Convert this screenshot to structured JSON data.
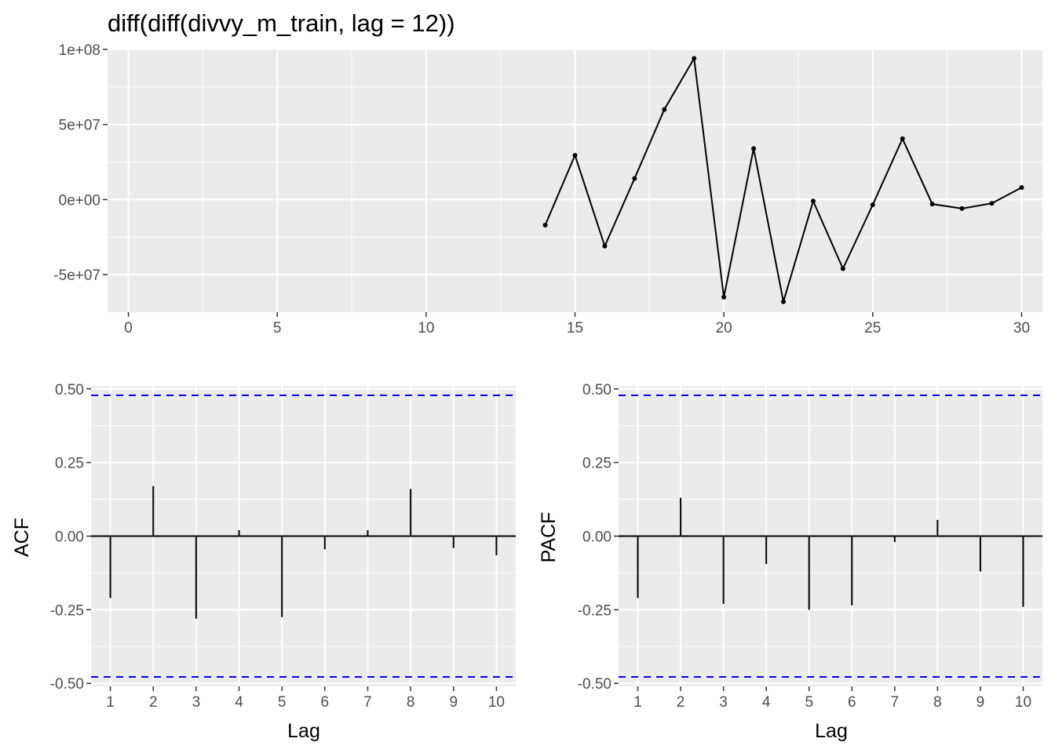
{
  "chart_data": [
    {
      "type": "line",
      "title": "diff(diff(divvy_m_train, lag = 12))",
      "xlabel": "",
      "ylabel": "",
      "xlim": [
        -0.7,
        30.7
      ],
      "ylim": [
        -75000000,
        100000000
      ],
      "x_ticks": [
        0,
        5,
        10,
        15,
        20,
        25,
        30
      ],
      "x_tick_labels": [
        "0",
        "5",
        "10",
        "15",
        "20",
        "25",
        "30"
      ],
      "y_ticks": [
        -50000000,
        0,
        50000000,
        100000000
      ],
      "y_tick_labels": [
        "-5e+07",
        "0e+00",
        "5e+07",
        "1e+08"
      ],
      "grid": true,
      "series": [
        {
          "x": [
            14,
            15,
            16,
            17,
            18,
            19,
            20,
            21,
            22,
            23,
            24,
            25,
            26,
            27,
            28,
            29,
            30
          ],
          "values": [
            -17000000,
            29500000,
            -31000000,
            14000000,
            60000000,
            94000000,
            -65000000,
            34000000,
            -68000000,
            -1000000,
            -46000000,
            -3500000,
            40500000,
            -3000000,
            -6000000,
            -2500000,
            8000000
          ]
        }
      ]
    },
    {
      "type": "bar",
      "title": "",
      "xlabel": "Lag",
      "ylabel": "ACF",
      "xlim": [
        0.55,
        10.45
      ],
      "ylim": [
        -0.51,
        0.51
      ],
      "categories": [
        1,
        2,
        3,
        4,
        5,
        6,
        7,
        8,
        9,
        10
      ],
      "values": [
        -0.21,
        0.17,
        -0.28,
        0.02,
        -0.275,
        -0.045,
        0.02,
        0.16,
        -0.04,
        -0.065
      ],
      "y_ticks": [
        -0.5,
        -0.25,
        0,
        0.25,
        0.5
      ],
      "y_tick_labels": [
        "-0.50",
        "-0.25",
        "0.00",
        "0.25",
        "0.50"
      ],
      "x_tick_labels": [
        "1",
        "2",
        "3",
        "4",
        "5",
        "6",
        "7",
        "8",
        "9",
        "10"
      ],
      "confidence_bounds": [
        -0.478,
        0.478
      ],
      "grid": true
    },
    {
      "type": "bar",
      "title": "",
      "xlabel": "Lag",
      "ylabel": "PACF",
      "xlim": [
        0.55,
        10.45
      ],
      "ylim": [
        -0.51,
        0.51
      ],
      "categories": [
        1,
        2,
        3,
        4,
        5,
        6,
        7,
        8,
        9,
        10
      ],
      "values": [
        -0.21,
        0.13,
        -0.23,
        -0.095,
        -0.25,
        -0.235,
        -0.02,
        0.055,
        -0.12,
        -0.24
      ],
      "y_ticks": [
        -0.5,
        -0.25,
        0,
        0.25,
        0.5
      ],
      "y_tick_labels": [
        "-0.50",
        "-0.25",
        "0.00",
        "0.25",
        "0.50"
      ],
      "x_tick_labels": [
        "1",
        "2",
        "3",
        "4",
        "5",
        "6",
        "7",
        "8",
        "9",
        "10"
      ],
      "confidence_bounds": [
        -0.478,
        0.478
      ],
      "grid": true
    }
  ],
  "colors": {
    "panel_bg": "#ebebeb",
    "grid": "#ffffff",
    "series": "#000000",
    "bound": "#0000ff",
    "tick_text": "#4d4d4d",
    "tick_mark": "#333333"
  }
}
